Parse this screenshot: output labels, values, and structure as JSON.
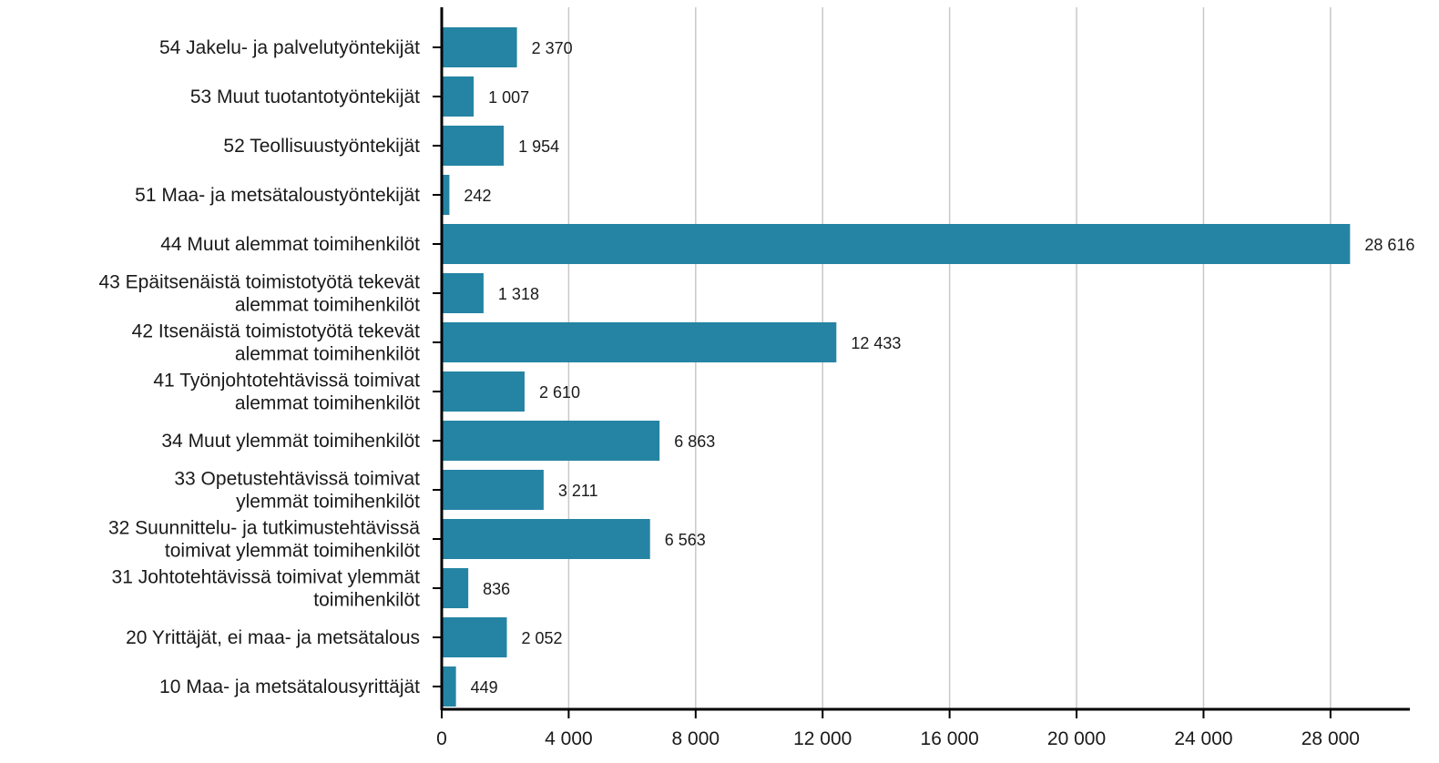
{
  "chart_data": {
    "type": "bar",
    "orientation": "horizontal",
    "title": "",
    "xlabel": "",
    "ylabel": "",
    "categories": [
      [
        "54 Jakelu- ja palvelutyöntekijät"
      ],
      [
        "53 Muut tuotantotyöntekijät"
      ],
      [
        "52 Teollisuustyöntekijät"
      ],
      [
        "51 Maa- ja metsätaloustyöntekijät"
      ],
      [
        "44 Muut alemmat toimihenkilöt"
      ],
      [
        "43 Epäitsenäistä toimistotyötä tekevät",
        "alemmat toimihenkilöt"
      ],
      [
        "42 Itsenäistä toimistotyötä tekevät",
        "alemmat toimihenkilöt"
      ],
      [
        "41 Työnjohtotehtävissä toimivat",
        "alemmat toimihenkilöt"
      ],
      [
        "34 Muut ylemmät toimihenkilöt"
      ],
      [
        "33 Opetustehtävissä toimivat",
        "ylemmät toimihenkilöt"
      ],
      [
        "32 Suunnittelu- ja tutkimustehtävissä",
        "toimivat ylemmät toimihenkilöt"
      ],
      [
        "31 Johtotehtävissä toimivat ylemmät",
        "toimihenkilöt"
      ],
      [
        "20 Yrittäjät, ei maa- ja metsätalous"
      ],
      [
        "10 Maa- ja metsätalousyrittäjät"
      ]
    ],
    "values": [
      2370,
      1007,
      1954,
      242,
      28616,
      1318,
      12433,
      2610,
      6863,
      3211,
      6563,
      836,
      2052,
      449
    ],
    "value_labels": [
      "2 370",
      "1 007",
      "1 954",
      "242",
      "28 616",
      "1 318",
      "12 433",
      "2 610",
      "6 863",
      "3 211",
      "6 563",
      "836",
      "2 052",
      "449"
    ],
    "xlim": [
      0,
      30500
    ],
    "x_ticks": [
      0,
      4000,
      8000,
      12000,
      16000,
      20000,
      24000,
      28000
    ],
    "x_tick_labels": [
      "0",
      "4 000",
      "8 000",
      "12 000",
      "16 000",
      "20 000",
      "24 000",
      "28 000"
    ],
    "grid": "vertical",
    "bar_color": "#2584a3",
    "grid_color": "#c8c8c8",
    "axis_color": "#000000",
    "legend": "none"
  }
}
